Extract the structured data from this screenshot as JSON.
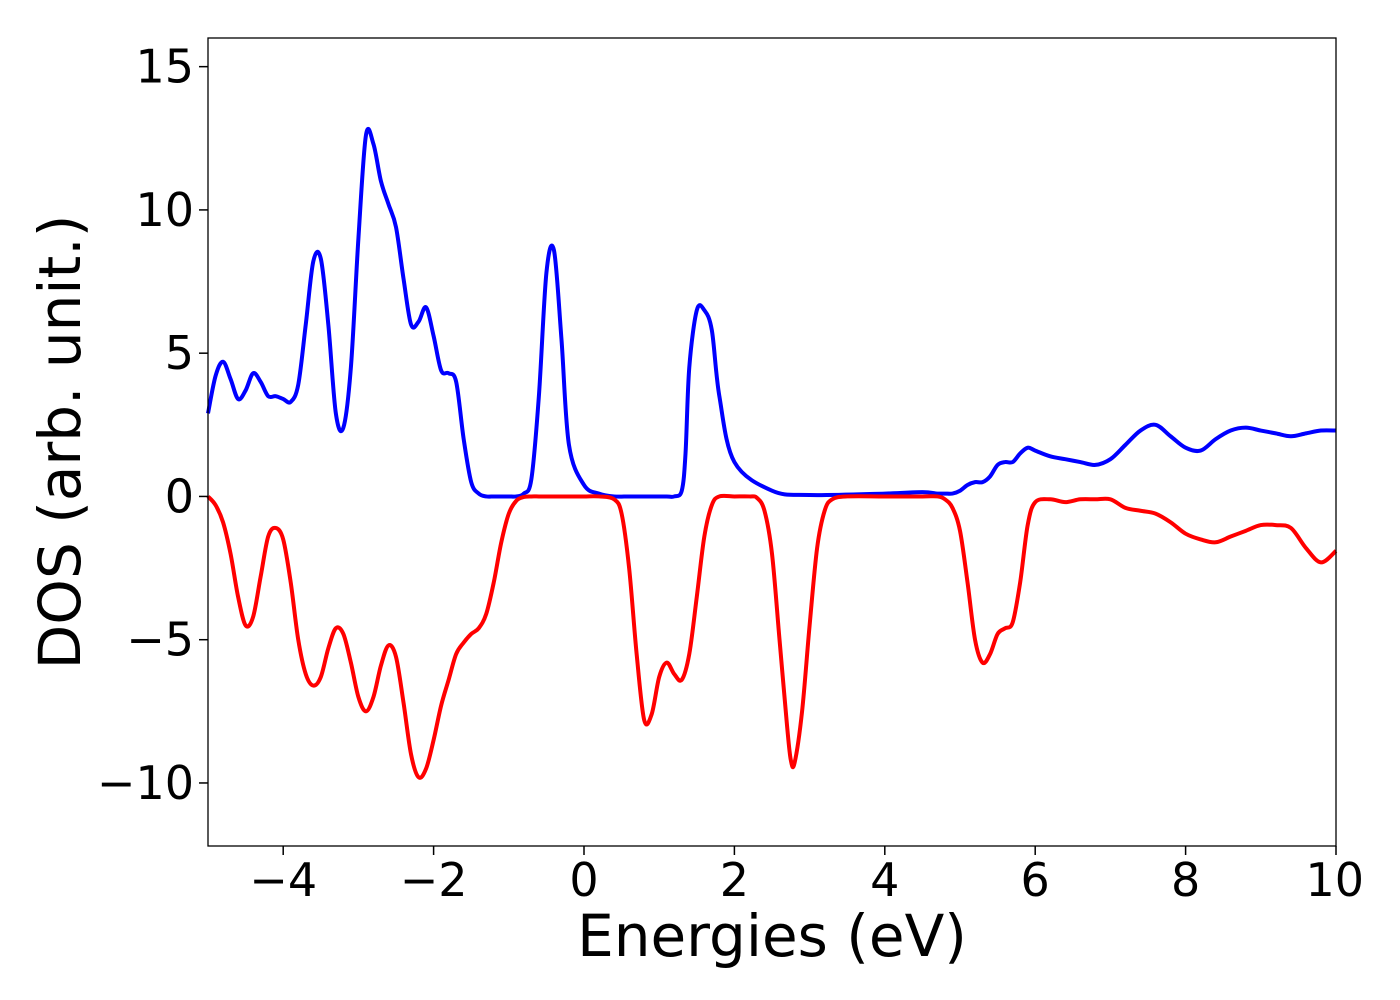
{
  "chart_data": {
    "type": "line",
    "title": "",
    "xlabel": "Energies (eV)",
    "ylabel": "DOS (arb. unit.)",
    "xlim": [
      -5,
      10
    ],
    "ylim": [
      -12.2,
      16
    ],
    "xticks": [
      -4,
      -2,
      0,
      2,
      4,
      6,
      8,
      10
    ],
    "xtick_labels": [
      "−4",
      "−2",
      "0",
      "2",
      "4",
      "6",
      "8",
      "10"
    ],
    "yticks": [
      -10,
      -5,
      0,
      5,
      10,
      15
    ],
    "ytick_labels": [
      "−10",
      "−5",
      "0",
      "5",
      "10",
      "15"
    ],
    "grid": false,
    "legend": false,
    "series": [
      {
        "color": "#0000ff",
        "x": [
          -5.0,
          -4.9,
          -4.8,
          -4.7,
          -4.6,
          -4.5,
          -4.4,
          -4.3,
          -4.2,
          -4.1,
          -4.0,
          -3.9,
          -3.8,
          -3.7,
          -3.6,
          -3.5,
          -3.4,
          -3.3,
          -3.2,
          -3.1,
          -3.0,
          -2.9,
          -2.8,
          -2.7,
          -2.6,
          -2.5,
          -2.4,
          -2.3,
          -2.2,
          -2.1,
          -2.0,
          -1.9,
          -1.8,
          -1.7,
          -1.6,
          -1.5,
          -1.4,
          -1.3,
          -1.2,
          -1.1,
          -1.0,
          -0.9,
          -0.8,
          -0.7,
          -0.6,
          -0.5,
          -0.4,
          -0.3,
          -0.2,
          0.0,
          0.2,
          0.4,
          0.6,
          0.8,
          1.0,
          1.1,
          1.2,
          1.3,
          1.35,
          1.4,
          1.5,
          1.6,
          1.7,
          1.8,
          2.0,
          2.5,
          3.0,
          4.0,
          4.5,
          4.7,
          4.8,
          4.9,
          5.0,
          5.1,
          5.2,
          5.3,
          5.4,
          5.5,
          5.6,
          5.7,
          5.8,
          5.9,
          6.0,
          6.2,
          6.4,
          6.6,
          6.8,
          7.0,
          7.2,
          7.4,
          7.6,
          7.8,
          8.0,
          8.2,
          8.4,
          8.6,
          8.8,
          9.0,
          9.2,
          9.4,
          9.6,
          9.8,
          10.0
        ],
        "y": [
          2.9,
          4.2,
          4.7,
          4.1,
          3.4,
          3.7,
          4.3,
          4.0,
          3.5,
          3.5,
          3.4,
          3.3,
          3.9,
          6.0,
          8.2,
          8.3,
          6.0,
          2.9,
          2.4,
          4.5,
          9.0,
          12.6,
          12.3,
          11.0,
          10.2,
          9.4,
          7.6,
          6.0,
          6.1,
          6.6,
          5.6,
          4.4,
          4.3,
          4.0,
          2.0,
          0.5,
          0.1,
          0.0,
          0.0,
          0.0,
          0.0,
          0.0,
          0.1,
          0.6,
          3.5,
          7.8,
          8.6,
          5.5,
          1.8,
          0.4,
          0.1,
          0.0,
          0.0,
          0.0,
          0.0,
          0.0,
          0.0,
          0.2,
          1.5,
          4.5,
          6.5,
          6.5,
          5.8,
          3.5,
          1.2,
          0.2,
          0.05,
          0.1,
          0.15,
          0.1,
          0.1,
          0.1,
          0.2,
          0.4,
          0.5,
          0.5,
          0.7,
          1.1,
          1.2,
          1.2,
          1.5,
          1.7,
          1.6,
          1.4,
          1.3,
          1.2,
          1.1,
          1.3,
          1.8,
          2.3,
          2.5,
          2.1,
          1.7,
          1.6,
          2.0,
          2.3,
          2.4,
          2.3,
          2.2,
          2.1,
          2.2,
          2.3,
          2.3
        ]
      },
      {
        "color": "#ff0000",
        "x": [
          -5.0,
          -4.9,
          -4.8,
          -4.7,
          -4.6,
          -4.5,
          -4.4,
          -4.3,
          -4.2,
          -4.1,
          -4.0,
          -3.9,
          -3.8,
          -3.7,
          -3.6,
          -3.5,
          -3.4,
          -3.3,
          -3.2,
          -3.1,
          -3.0,
          -2.9,
          -2.8,
          -2.7,
          -2.6,
          -2.5,
          -2.4,
          -2.3,
          -2.2,
          -2.1,
          -2.0,
          -1.9,
          -1.8,
          -1.7,
          -1.6,
          -1.5,
          -1.4,
          -1.3,
          -1.2,
          -1.1,
          -1.0,
          -0.9,
          -0.8,
          -0.7,
          -0.6,
          -0.5,
          -0.4,
          -0.2,
          0.0,
          0.2,
          0.4,
          0.5,
          0.6,
          0.7,
          0.8,
          0.9,
          1.0,
          1.1,
          1.2,
          1.3,
          1.4,
          1.5,
          1.6,
          1.7,
          1.8,
          2.0,
          2.2,
          2.3,
          2.4,
          2.5,
          2.6,
          2.7,
          2.75,
          2.8,
          2.9,
          3.0,
          3.1,
          3.2,
          3.3,
          3.5,
          4.0,
          4.5,
          4.7,
          4.8,
          4.9,
          5.0,
          5.1,
          5.2,
          5.3,
          5.4,
          5.5,
          5.6,
          5.7,
          5.8,
          5.9,
          6.0,
          6.2,
          6.4,
          6.6,
          6.8,
          7.0,
          7.2,
          7.4,
          7.6,
          7.8,
          8.0,
          8.2,
          8.4,
          8.6,
          8.8,
          9.0,
          9.2,
          9.4,
          9.6,
          9.8,
          10.0
        ],
        "y": [
          0.0,
          -0.3,
          -0.9,
          -2.0,
          -3.5,
          -4.5,
          -4.2,
          -2.8,
          -1.4,
          -1.1,
          -1.5,
          -3.0,
          -5.0,
          -6.2,
          -6.6,
          -6.3,
          -5.3,
          -4.6,
          -4.8,
          -5.8,
          -7.0,
          -7.5,
          -7.0,
          -5.9,
          -5.2,
          -5.6,
          -7.2,
          -9.0,
          -9.8,
          -9.5,
          -8.5,
          -7.3,
          -6.4,
          -5.5,
          -5.1,
          -4.8,
          -4.6,
          -4.1,
          -3.0,
          -1.6,
          -0.6,
          -0.15,
          -0.02,
          0.0,
          0.0,
          0.0,
          0.0,
          0.0,
          0.0,
          0.0,
          -0.1,
          -0.6,
          -2.5,
          -5.5,
          -7.8,
          -7.6,
          -6.3,
          -5.8,
          -6.2,
          -6.4,
          -5.5,
          -3.5,
          -1.4,
          -0.3,
          0.0,
          0.0,
          0.0,
          -0.05,
          -0.5,
          -2.0,
          -5.0,
          -8.0,
          -9.2,
          -9.3,
          -7.5,
          -4.5,
          -1.8,
          -0.5,
          -0.1,
          0.0,
          0.0,
          0.0,
          0.0,
          -0.1,
          -0.4,
          -1.2,
          -3.0,
          -5.0,
          -5.8,
          -5.5,
          -4.8,
          -4.6,
          -4.4,
          -3.0,
          -1.0,
          -0.2,
          -0.1,
          -0.2,
          -0.1,
          -0.1,
          -0.1,
          -0.4,
          -0.5,
          -0.6,
          -0.9,
          -1.3,
          -1.5,
          -1.6,
          -1.4,
          -1.2,
          -1.0,
          -1.0,
          -1.1,
          -1.8,
          -2.3,
          -1.9
        ]
      }
    ]
  }
}
